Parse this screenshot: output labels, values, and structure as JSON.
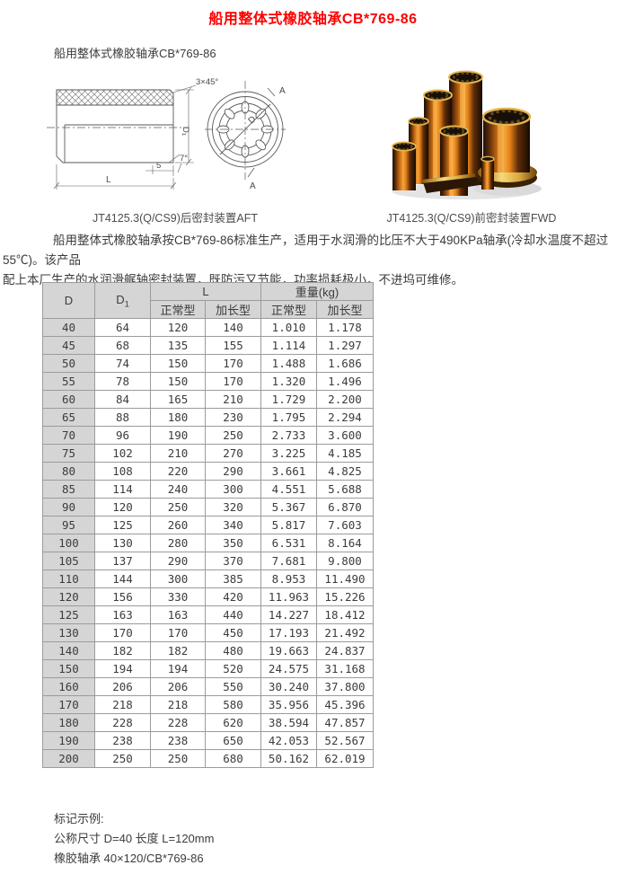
{
  "title": "船用整体式橡胶轴承CB*769-86",
  "subtitle": "船用整体式橡胶轴承CB*769-86",
  "figures": {
    "aft_caption": "JT4125.3(Q/CS9)后密封装置AFT",
    "fwd_caption": "JT4125.3(Q/CS9)前密封装置FWD",
    "drawing_labels": {
      "chamfer": "3×45°",
      "d1": "D₁",
      "angle7": "7°",
      "dim5": "5",
      "dimL": "L",
      "dimD": "D",
      "section": "A"
    }
  },
  "description": {
    "line1": "船用整体式橡胶轴承按CB*769-86标准生产，适用于水润滑的比压不大于490KPa轴承(冷却水温度不超过 55℃)。该产品",
    "line2": "配上本厂生产的水润滑艉轴密封装置，既防污又节能，功率损耗极小，不进坞可维修。"
  },
  "table": {
    "headers": {
      "d": "D",
      "d1_base": "D",
      "d1_sub": "1",
      "l_group": "L",
      "weight_group": "重量(kg)",
      "normal": "正常型",
      "extended": "加长型"
    },
    "rows": [
      [
        "40",
        "64",
        "120",
        "140",
        "1.010",
        "1.178"
      ],
      [
        "45",
        "68",
        "135",
        "155",
        "1.114",
        "1.297"
      ],
      [
        "50",
        "74",
        "150",
        "170",
        "1.488",
        "1.686"
      ],
      [
        "55",
        "78",
        "150",
        "170",
        "1.320",
        "1.496"
      ],
      [
        "60",
        "84",
        "165",
        "210",
        "1.729",
        "2.200"
      ],
      [
        "65",
        "88",
        "180",
        "230",
        "1.795",
        "2.294"
      ],
      [
        "70",
        "96",
        "190",
        "250",
        "2.733",
        "3.600"
      ],
      [
        "75",
        "102",
        "210",
        "270",
        "3.225",
        "4.185"
      ],
      [
        "80",
        "108",
        "220",
        "290",
        "3.661",
        "4.825"
      ],
      [
        "85",
        "114",
        "240",
        "300",
        "4.551",
        "5.688"
      ],
      [
        "90",
        "120",
        "250",
        "320",
        "5.367",
        "6.870"
      ],
      [
        "95",
        "125",
        "260",
        "340",
        "5.817",
        "7.603"
      ],
      [
        "100",
        "130",
        "280",
        "350",
        "6.531",
        "8.164"
      ],
      [
        "105",
        "137",
        "290",
        "370",
        "7.681",
        "9.800"
      ],
      [
        "110",
        "144",
        "300",
        "385",
        "8.953",
        "11.490"
      ],
      [
        "120",
        "156",
        "330",
        "420",
        "11.963",
        "15.226"
      ],
      [
        "125",
        "163",
        "163",
        "440",
        "14.227",
        "18.412"
      ],
      [
        "130",
        "170",
        "170",
        "450",
        "17.193",
        "21.492"
      ],
      [
        "140",
        "182",
        "182",
        "480",
        "19.663",
        "24.837"
      ],
      [
        "150",
        "194",
        "194",
        "520",
        "24.575",
        "31.168"
      ],
      [
        "160",
        "206",
        "206",
        "550",
        "30.240",
        "37.800"
      ],
      [
        "170",
        "218",
        "218",
        "580",
        "35.956",
        "45.396"
      ],
      [
        "180",
        "228",
        "228",
        "620",
        "38.594",
        "47.857"
      ],
      [
        "190",
        "238",
        "238",
        "650",
        "42.053",
        "52.567"
      ],
      [
        "200",
        "250",
        "250",
        "680",
        "50.162",
        "62.019"
      ]
    ]
  },
  "notes": {
    "title": "标记示例:",
    "line1": "公称尺寸 D=40 长度 L=120mm",
    "line2": "橡胶轴承 40×120/CB*769-86"
  },
  "colors": {
    "title_red": "#ff0000",
    "table_header_bg": "#d5d5d5",
    "table_border": "#9b9b9b",
    "brass_highlight": "#f5a43c"
  }
}
